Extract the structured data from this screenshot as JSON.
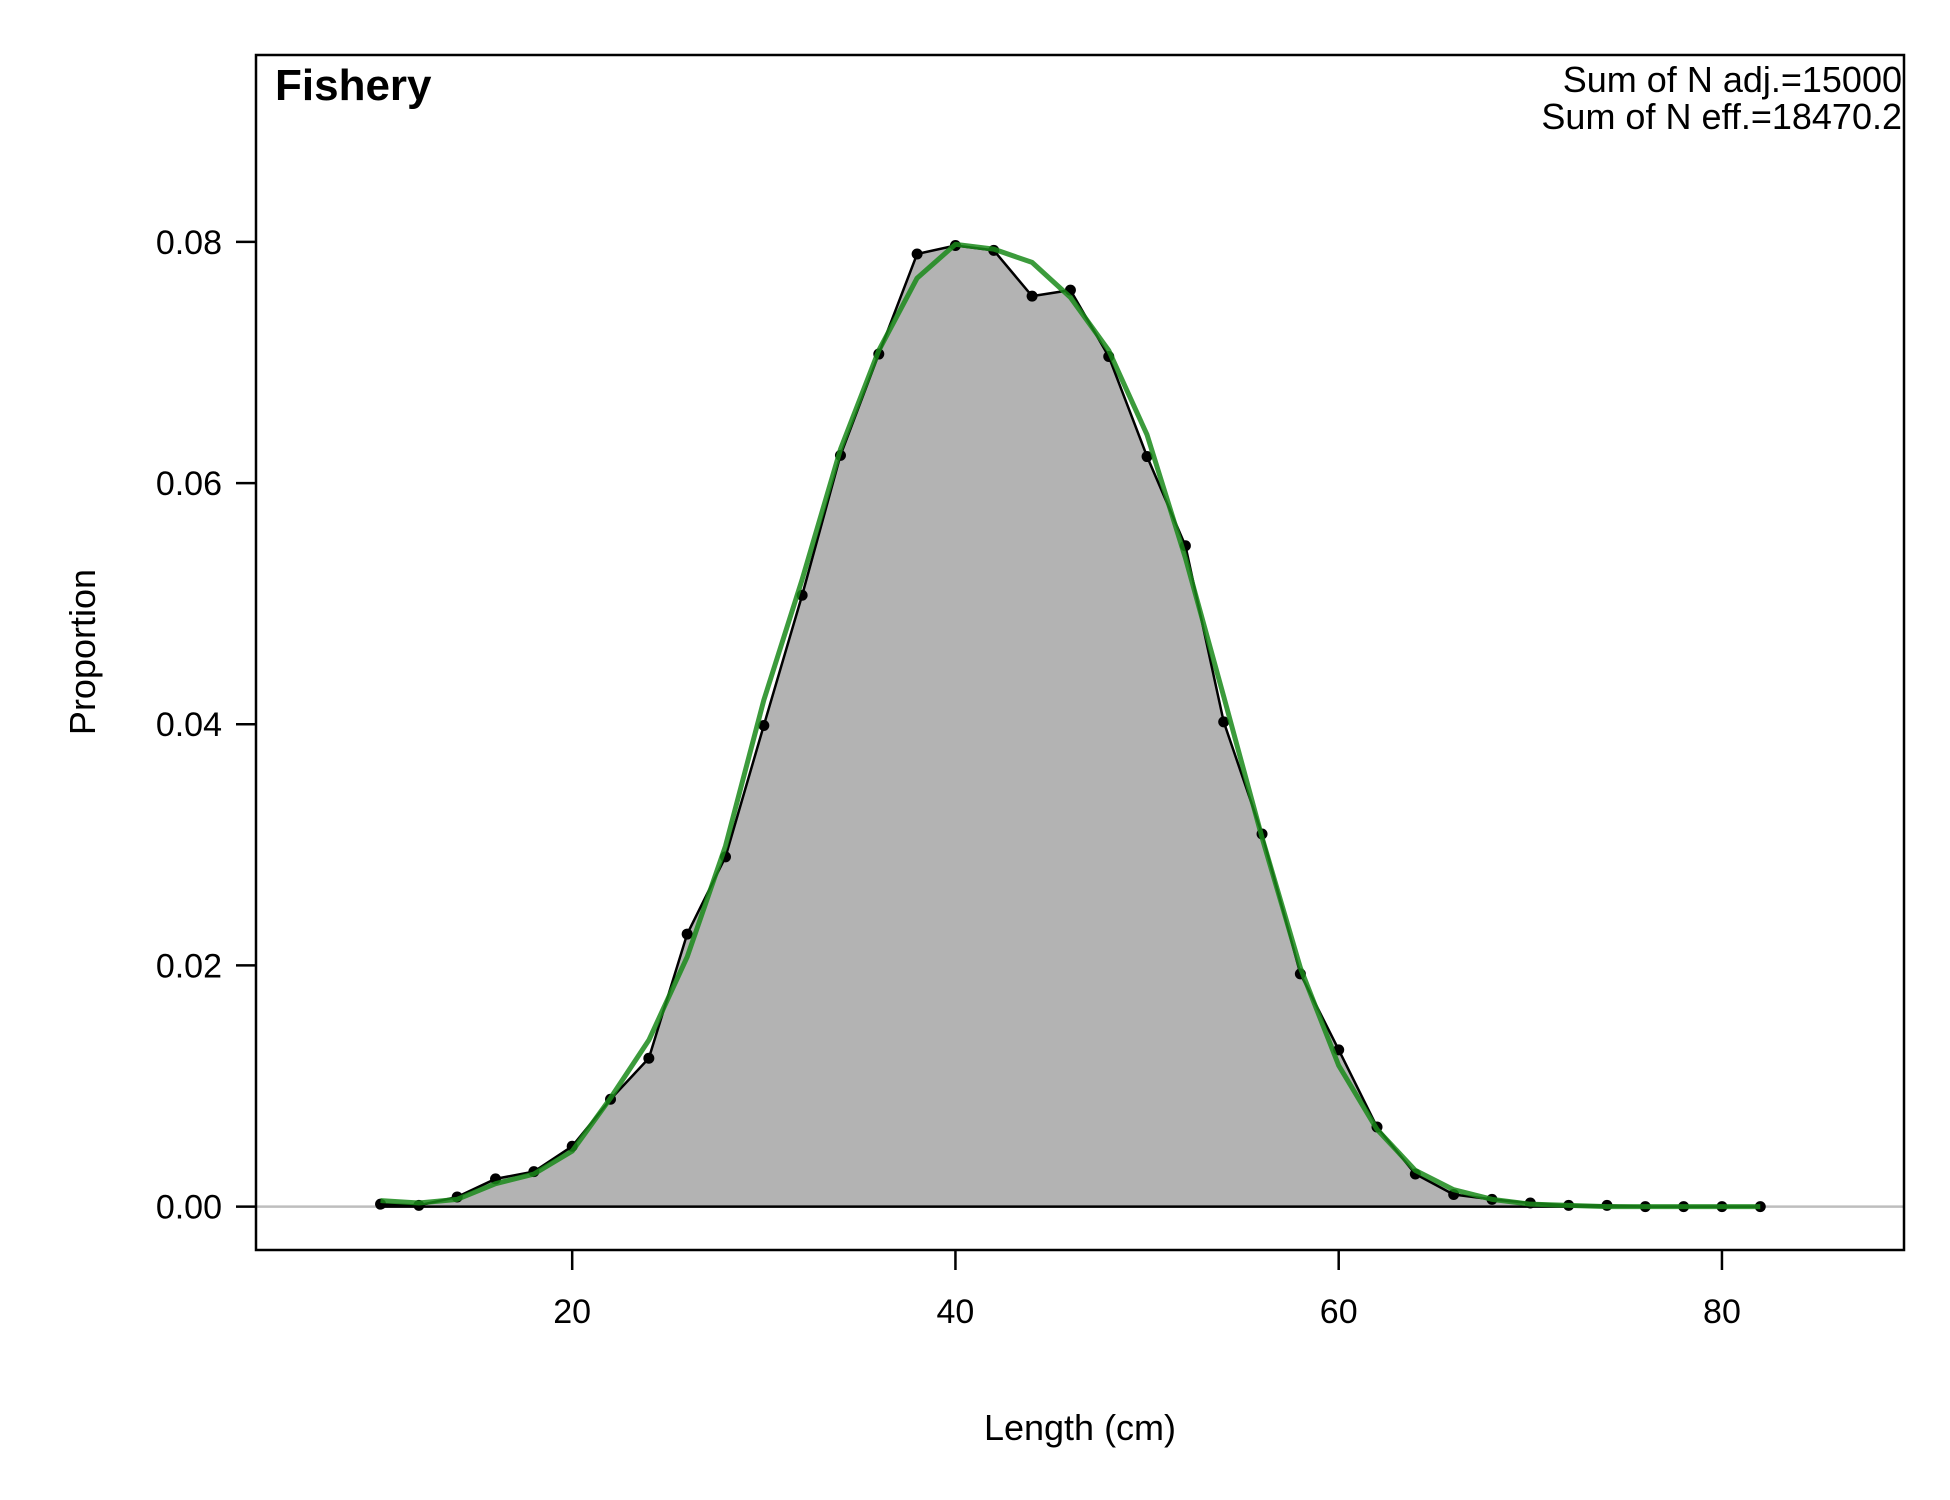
{
  "chart_data": {
    "type": "area",
    "panel_title": "Fishery",
    "annotations": [
      "Sum of N adj.=15000",
      "Sum of N eff.=18470.2"
    ],
    "xlabel": "Length (cm)",
    "ylabel": "Proportion",
    "xlim": [
      3.5,
      89.5
    ],
    "ylim": [
      -0.0036,
      0.0955
    ],
    "x_ticks": [
      20,
      40,
      60,
      80
    ],
    "y_ticks": [
      0.0,
      0.02,
      0.04,
      0.06,
      0.08
    ],
    "y_tick_labels": [
      "0.00",
      "0.02",
      "0.04",
      "0.06",
      "0.08"
    ],
    "grid": false,
    "x": [
      10,
      12,
      14,
      16,
      18,
      20,
      22,
      24,
      26,
      28,
      30,
      32,
      34,
      36,
      38,
      40,
      42,
      44,
      46,
      48,
      50,
      52,
      54,
      56,
      58,
      60,
      62,
      64,
      66,
      68,
      70,
      72,
      74,
      76,
      78,
      80,
      82
    ],
    "series": [
      {
        "role": "observed",
        "color": "#000000",
        "fill": "#b3b3b3",
        "values": [
          0.0002,
          0.0001,
          0.0008,
          0.0023,
          0.0029,
          0.005,
          0.0089,
          0.0123,
          0.0226,
          0.029,
          0.0399,
          0.0507,
          0.0623,
          0.0707,
          0.079,
          0.0797,
          0.0793,
          0.0755,
          0.076,
          0.0705,
          0.0622,
          0.0548,
          0.0402,
          0.0309,
          0.0193,
          0.013,
          0.0066,
          0.0027,
          0.001,
          0.0006,
          0.0003,
          0.0001,
          0.0001,
          0.0,
          0.0,
          0.0,
          0.0
        ]
      },
      {
        "role": "expected",
        "color": "#1a8a1a",
        "values": [
          0.0005,
          0.0003,
          0.0006,
          0.0019,
          0.0027,
          0.0046,
          0.009,
          0.0138,
          0.0207,
          0.0299,
          0.042,
          0.052,
          0.0628,
          0.071,
          0.077,
          0.0798,
          0.0794,
          0.0783,
          0.0754,
          0.071,
          0.064,
          0.0538,
          0.0423,
          0.0306,
          0.0198,
          0.0117,
          0.0064,
          0.003,
          0.0014,
          0.0006,
          0.0002,
          0.0001,
          0.0,
          0.0,
          0.0,
          0.0,
          0.0
        ]
      }
    ],
    "zero_line_color": "#bebebe"
  }
}
